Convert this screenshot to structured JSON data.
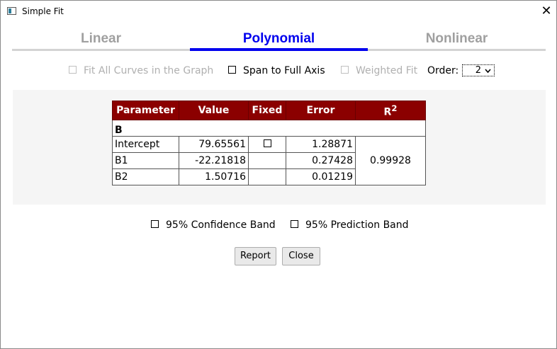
{
  "window": {
    "title": "Simple Fit",
    "close_glyph": "✕"
  },
  "tabs": [
    {
      "label": "Linear",
      "active": false
    },
    {
      "label": "Polynomial",
      "active": true
    },
    {
      "label": "Nonlinear",
      "active": false
    }
  ],
  "options": {
    "fit_all_curves": {
      "label": "Fit All Curves in the Graph",
      "checked": false,
      "enabled": false
    },
    "span_full_axis": {
      "label": "Span to Full Axis",
      "checked": false,
      "enabled": true
    },
    "weighted_fit": {
      "label": "Weighted Fit",
      "checked": false,
      "enabled": false
    },
    "order": {
      "label": "Order:",
      "value": "2"
    }
  },
  "results": {
    "headers": {
      "parameter": "Parameter",
      "value": "Value",
      "fixed": "Fixed",
      "error": "Error",
      "r2": "R",
      "r2_sup": "2"
    },
    "group": "B",
    "rows": [
      {
        "parameter": "Intercept",
        "value": "79.65561",
        "fixed_checkbox": true,
        "error": "1.28871"
      },
      {
        "parameter": "B1",
        "value": "-22.21818",
        "fixed_checkbox": false,
        "error": "0.27428"
      },
      {
        "parameter": "B2",
        "value": "1.50716",
        "fixed_checkbox": false,
        "error": "0.01219"
      }
    ],
    "r2_value": "0.99928"
  },
  "bands": {
    "confidence": {
      "label": "95% Confidence Band",
      "checked": false
    },
    "prediction": {
      "label": "95% Prediction Band",
      "checked": false
    }
  },
  "buttons": {
    "report": "Report",
    "close": "Close"
  },
  "colors": {
    "accent": "#0000ee",
    "header_bg": "#8b0000",
    "disabled_text": "#b0b0b0"
  }
}
